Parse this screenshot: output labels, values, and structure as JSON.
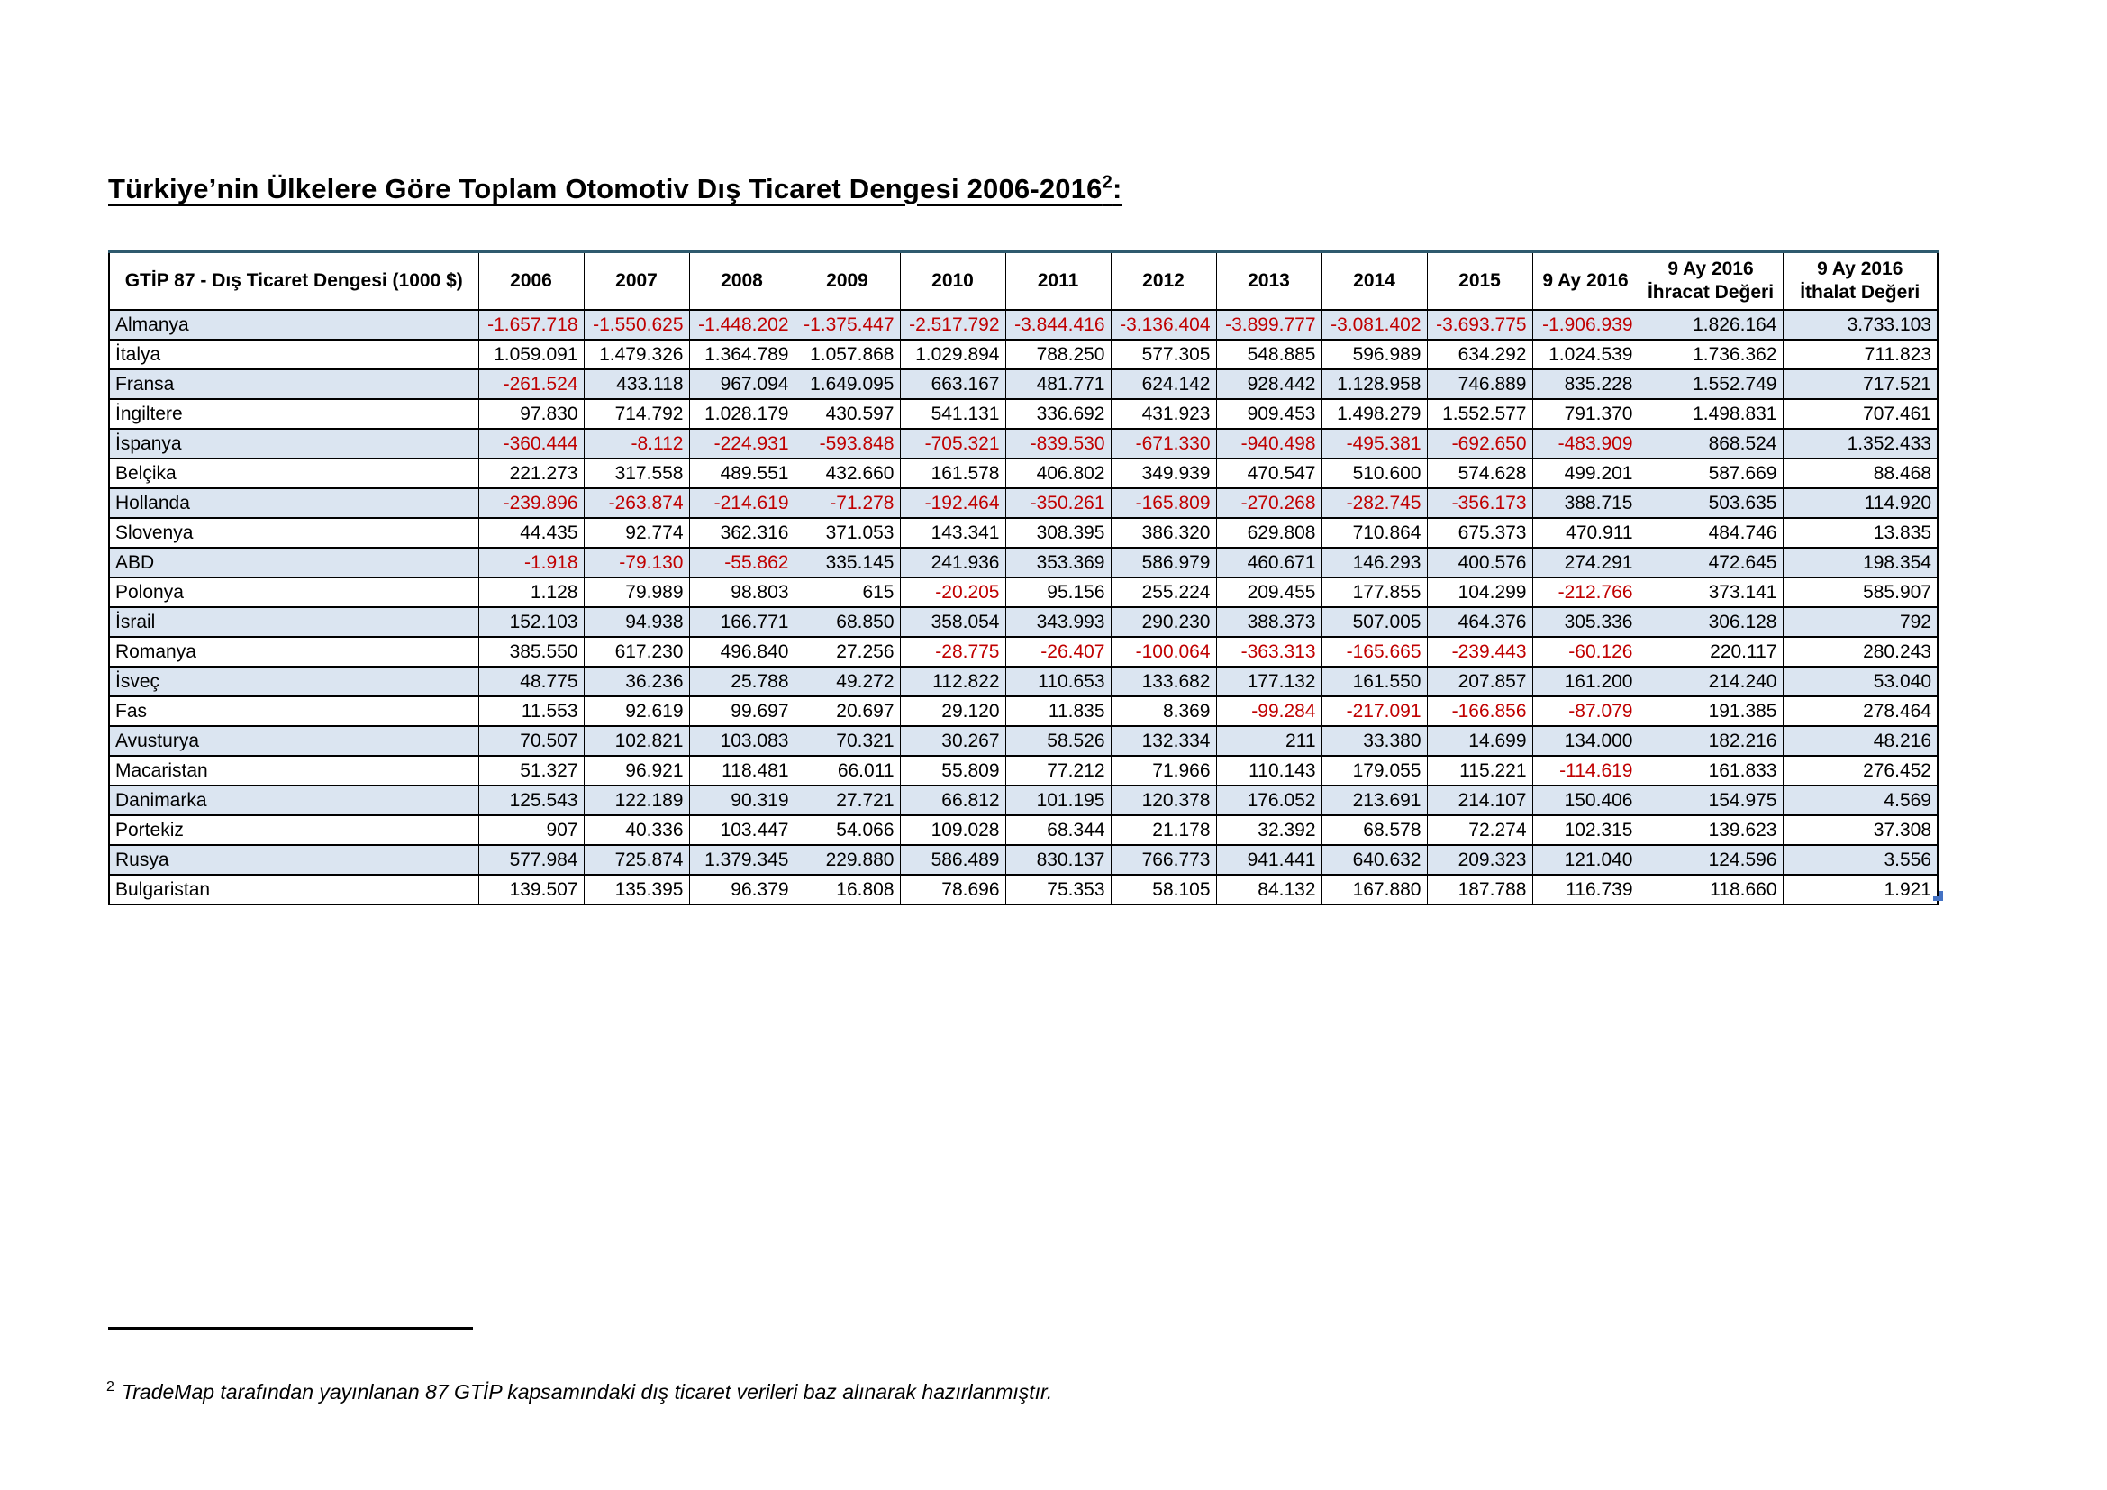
{
  "title": {
    "main": "Türkiye’nin Ülkelere Göre Toplam Otomotiv Dış Ticaret Dengesi 2006-2016",
    "superscript": "2",
    "tail": ":"
  },
  "table": {
    "headers": [
      "GTİP 87 - Dış Ticaret Dengesi (1000 $)",
      "2006",
      "2007",
      "2008",
      "2009",
      "2010",
      "2011",
      "2012",
      "2013",
      "2014",
      "2015",
      "9 Ay 2016",
      "9 Ay 2016\nİhracat Değeri",
      "9 Ay 2016\nİthalat Değeri"
    ],
    "rows": [
      {
        "country": "Almanya",
        "values": [
          "-1.657.718",
          "-1.550.625",
          "-1.448.202",
          "-1.375.447",
          "-2.517.792",
          "-3.844.416",
          "-3.136.404",
          "-3.899.777",
          "-3.081.402",
          "-3.693.775",
          "-1.906.939",
          "1.826.164",
          "3.733.103"
        ]
      },
      {
        "country": "İtalya",
        "values": [
          "1.059.091",
          "1.479.326",
          "1.364.789",
          "1.057.868",
          "1.029.894",
          "788.250",
          "577.305",
          "548.885",
          "596.989",
          "634.292",
          "1.024.539",
          "1.736.362",
          "711.823"
        ]
      },
      {
        "country": "Fransa",
        "values": [
          "-261.524",
          "433.118",
          "967.094",
          "1.649.095",
          "663.167",
          "481.771",
          "624.142",
          "928.442",
          "1.128.958",
          "746.889",
          "835.228",
          "1.552.749",
          "717.521"
        ]
      },
      {
        "country": "İngiltere",
        "values": [
          "97.830",
          "714.792",
          "1.028.179",
          "430.597",
          "541.131",
          "336.692",
          "431.923",
          "909.453",
          "1.498.279",
          "1.552.577",
          "791.370",
          "1.498.831",
          "707.461"
        ]
      },
      {
        "country": "İspanya",
        "values": [
          "-360.444",
          "-8.112",
          "-224.931",
          "-593.848",
          "-705.321",
          "-839.530",
          "-671.330",
          "-940.498",
          "-495.381",
          "-692.650",
          "-483.909",
          "868.524",
          "1.352.433"
        ]
      },
      {
        "country": "Belçika",
        "values": [
          "221.273",
          "317.558",
          "489.551",
          "432.660",
          "161.578",
          "406.802",
          "349.939",
          "470.547",
          "510.600",
          "574.628",
          "499.201",
          "587.669",
          "88.468"
        ]
      },
      {
        "country": "Hollanda",
        "values": [
          "-239.896",
          "-263.874",
          "-214.619",
          "-71.278",
          "-192.464",
          "-350.261",
          "-165.809",
          "-270.268",
          "-282.745",
          "-356.173",
          "388.715",
          "503.635",
          "114.920"
        ]
      },
      {
        "country": "Slovenya",
        "values": [
          "44.435",
          "92.774",
          "362.316",
          "371.053",
          "143.341",
          "308.395",
          "386.320",
          "629.808",
          "710.864",
          "675.373",
          "470.911",
          "484.746",
          "13.835"
        ]
      },
      {
        "country": "ABD",
        "values": [
          "-1.918",
          "-79.130",
          "-55.862",
          "335.145",
          "241.936",
          "353.369",
          "586.979",
          "460.671",
          "146.293",
          "400.576",
          "274.291",
          "472.645",
          "198.354"
        ]
      },
      {
        "country": "Polonya",
        "values": [
          "1.128",
          "79.989",
          "98.803",
          "615",
          "-20.205",
          "95.156",
          "255.224",
          "209.455",
          "177.855",
          "104.299",
          "-212.766",
          "373.141",
          "585.907"
        ]
      },
      {
        "country": "İsrail",
        "values": [
          "152.103",
          "94.938",
          "166.771",
          "68.850",
          "358.054",
          "343.993",
          "290.230",
          "388.373",
          "507.005",
          "464.376",
          "305.336",
          "306.128",
          "792"
        ]
      },
      {
        "country": "Romanya",
        "values": [
          "385.550",
          "617.230",
          "496.840",
          "27.256",
          "-28.775",
          "-26.407",
          "-100.064",
          "-363.313",
          "-165.665",
          "-239.443",
          "-60.126",
          "220.117",
          "280.243"
        ]
      },
      {
        "country": "İsveç",
        "values": [
          "48.775",
          "36.236",
          "25.788",
          "49.272",
          "112.822",
          "110.653",
          "133.682",
          "177.132",
          "161.550",
          "207.857",
          "161.200",
          "214.240",
          "53.040"
        ]
      },
      {
        "country": "Fas",
        "values": [
          "11.553",
          "92.619",
          "99.697",
          "20.697",
          "29.120",
          "11.835",
          "8.369",
          "-99.284",
          "-217.091",
          "-166.856",
          "-87.079",
          "191.385",
          "278.464"
        ]
      },
      {
        "country": "Avusturya",
        "values": [
          "70.507",
          "102.821",
          "103.083",
          "70.321",
          "30.267",
          "58.526",
          "132.334",
          "211",
          "33.380",
          "14.699",
          "134.000",
          "182.216",
          "48.216"
        ]
      },
      {
        "country": "Macaristan",
        "values": [
          "51.327",
          "96.921",
          "118.481",
          "66.011",
          "55.809",
          "77.212",
          "71.966",
          "110.143",
          "179.055",
          "115.221",
          "-114.619",
          "161.833",
          "276.452"
        ]
      },
      {
        "country": "Danimarka",
        "values": [
          "125.543",
          "122.189",
          "90.319",
          "27.721",
          "66.812",
          "101.195",
          "120.378",
          "176.052",
          "213.691",
          "214.107",
          "150.406",
          "154.975",
          "4.569"
        ]
      },
      {
        "country": "Portekiz",
        "values": [
          "907",
          "40.336",
          "103.447",
          "54.066",
          "109.028",
          "68.344",
          "21.178",
          "32.392",
          "68.578",
          "72.274",
          "102.315",
          "139.623",
          "37.308"
        ]
      },
      {
        "country": "Rusya",
        "values": [
          "577.984",
          "725.874",
          "1.379.345",
          "229.880",
          "586.489",
          "830.137",
          "766.773",
          "941.441",
          "640.632",
          "209.323",
          "121.040",
          "124.596",
          "3.556"
        ]
      },
      {
        "country": "Bulgaristan",
        "values": [
          "139.507",
          "135.395",
          "96.379",
          "16.808",
          "78.696",
          "75.353",
          "58.105",
          "84.132",
          "167.880",
          "187.788",
          "116.739",
          "118.660",
          "1.921"
        ]
      }
    ]
  },
  "footnote": {
    "superscript": "2",
    "text": "TradeMap tarafından yayınlanan 87 GTİP kapsamındaki dış ticaret verileri baz alınarak hazırlanmıştır."
  },
  "colors": {
    "alt_row_fill": "#dbe5f1",
    "negative_text": "#c00000",
    "table_top_border": "#2e5a6e",
    "resize_handle_blue": "#4472c4"
  }
}
